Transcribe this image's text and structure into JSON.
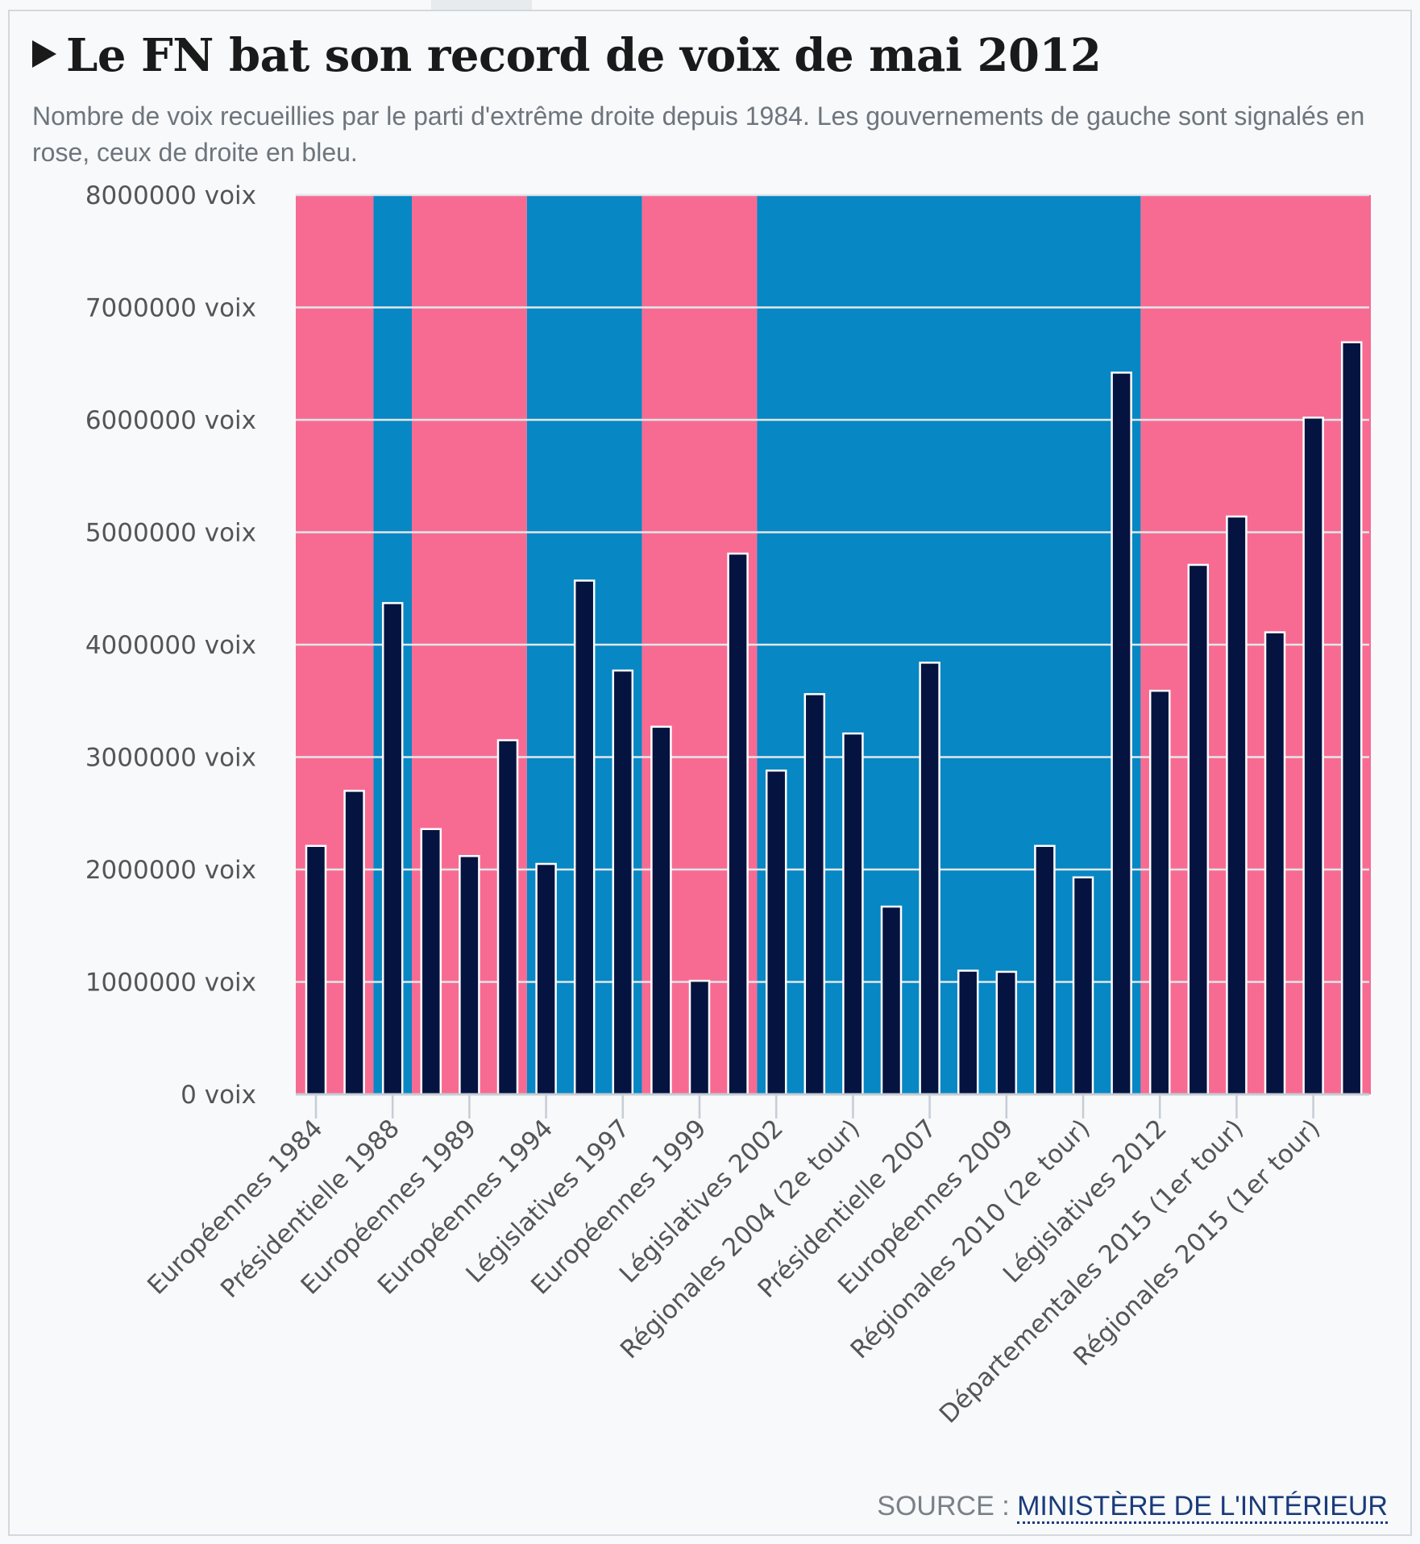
{
  "title": "Le FN bat son record de voix de mai 2012",
  "subtitle": "Nombre de voix recueillies par le parti d'extrême droite depuis 1984. Les gouvernements de gauche sont signalés en rose, ceux de droite en bleu.",
  "source": {
    "prefix": "SOURCE : ",
    "link": "MINISTÈRE DE L'INTÉRIEUR"
  },
  "colors": {
    "left_government": "#f76b93",
    "right_government": "#0787c4",
    "bar": "#051340",
    "bar_outline": "#ffffff",
    "grid": "#e3e7ea",
    "axis_text": "#555555"
  },
  "chart_data": {
    "type": "bar",
    "ylim": [
      0,
      8000000
    ],
    "yticks": [
      0,
      1000000,
      2000000,
      3000000,
      4000000,
      5000000,
      6000000,
      7000000,
      8000000
    ],
    "ytick_labels": [
      "0 voix",
      "1000000 voix",
      "2000000 voix",
      "3000000 voix",
      "4000000 voix",
      "5000000 voix",
      "6000000 voix",
      "7000000 voix",
      "8000000 voix"
    ],
    "grid": true,
    "bar_count": 28,
    "values": [
      2210000,
      2700000,
      4370000,
      2360000,
      2120000,
      3150000,
      2050000,
      4570000,
      3770000,
      3270000,
      1010000,
      4810000,
      2880000,
      3560000,
      3210000,
      1670000,
      3840000,
      1100000,
      1090000,
      2210000,
      1930000,
      6420000,
      3590000,
      4710000,
      5140000,
      4110000,
      6020000,
      6690000
    ],
    "tick_labels": [
      {
        "bar": 0,
        "label": "Européennes 1984"
      },
      {
        "bar": 2,
        "label": "Présidentielle 1988"
      },
      {
        "bar": 4,
        "label": "Européennes 1989"
      },
      {
        "bar": 6,
        "label": "Européennes 1994"
      },
      {
        "bar": 8,
        "label": "Législatives 1997"
      },
      {
        "bar": 10,
        "label": "Européennes 1999"
      },
      {
        "bar": 12,
        "label": "Législatives 2002"
      },
      {
        "bar": 14,
        "label": "Régionales 2004 (2e tour)"
      },
      {
        "bar": 16,
        "label": "Présidentielle 2007"
      },
      {
        "bar": 18,
        "label": "Européennes 2009"
      },
      {
        "bar": 20,
        "label": "Régionales 2010 (2e tour)"
      },
      {
        "bar": 22,
        "label": "Législatives 2012"
      },
      {
        "bar": 24,
        "label": "Départementales 2015 (1er tour)"
      },
      {
        "bar": 26,
        "label": "Régionales 2015 (1er tour)"
      }
    ],
    "government_periods": [
      {
        "from": 0,
        "to": 1.5,
        "side": "gauche"
      },
      {
        "from": 1.5,
        "to": 2.5,
        "side": "droite"
      },
      {
        "from": 2.5,
        "to": 5.5,
        "side": "gauche"
      },
      {
        "from": 5.5,
        "to": 8.5,
        "side": "droite"
      },
      {
        "from": 8.5,
        "to": 11.5,
        "side": "gauche"
      },
      {
        "from": 11.5,
        "to": 21.5,
        "side": "droite"
      },
      {
        "from": 21.5,
        "to": 27.5,
        "side": "gauche"
      }
    ]
  }
}
